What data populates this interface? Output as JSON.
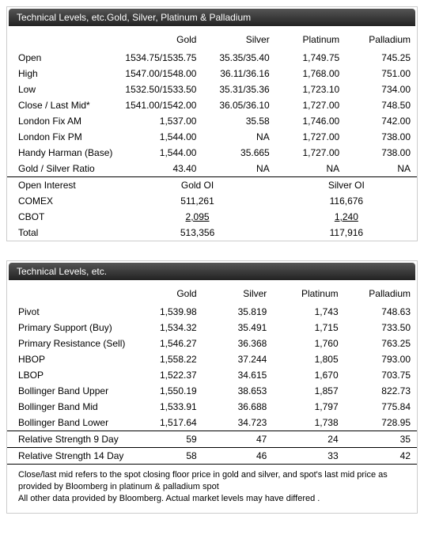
{
  "table1": {
    "title": "Technical Levels, etc.Gold, Silver, Platinum & Palladium",
    "cols": [
      "Gold",
      "Silver",
      "Platinum",
      "Palladium"
    ],
    "rows": [
      {
        "label": "Open",
        "v": [
          "1534.75/1535.75",
          "35.35/35.40",
          "1,749.75",
          "745.25"
        ]
      },
      {
        "label": "High",
        "v": [
          "1547.00/1548.00",
          "36.11/36.16",
          "1,768.00",
          "751.00"
        ]
      },
      {
        "label": "Low",
        "v": [
          "1532.50/1533.50",
          "35.31/35.36",
          "1,723.10",
          "734.00"
        ]
      },
      {
        "label": "Close / Last Mid*",
        "v": [
          "1541.00/1542.00",
          "36.05/36.10",
          "1,727.00",
          "748.50"
        ]
      },
      {
        "label": "London Fix AM",
        "v": [
          "1,537.00",
          "35.58",
          "1,746.00",
          "742.00"
        ]
      },
      {
        "label": "London Fix PM",
        "v": [
          "1,544.00",
          "NA",
          "1,727.00",
          "738.00"
        ]
      },
      {
        "label": "Handy Harman (Base)",
        "v": [
          "1,544.00",
          "35.665",
          "1,727.00",
          "738.00"
        ]
      },
      {
        "label": "Gold / Silver Ratio",
        "v": [
          "43.40",
          "NA",
          "NA",
          "NA"
        ]
      }
    ],
    "oi_header": {
      "label": "Open Interest",
      "gold": "Gold OI",
      "silver": "Silver OI"
    },
    "oi_rows": [
      {
        "label": "COMEX",
        "gold": "511,261",
        "silver": "116,676",
        "ul": false
      },
      {
        "label": "CBOT",
        "gold": "2,095",
        "silver": "1,240",
        "ul": true
      },
      {
        "label": "Total",
        "gold": "513,356",
        "silver": "117,916",
        "ul": false
      }
    ]
  },
  "table2": {
    "title": "Technical Levels, etc.",
    "cols": [
      "Gold",
      "Silver",
      "Platinum",
      "Palladium"
    ],
    "rows": [
      {
        "label": "Pivot",
        "v": [
          "1,539.98",
          "35.819",
          "1,743",
          "748.63"
        ]
      },
      {
        "label": "Primary Support (Buy)",
        "v": [
          "1,534.32",
          "35.491",
          "1,715",
          "733.50"
        ]
      },
      {
        "label": "Primary Resistance (Sell)",
        "v": [
          "1,546.27",
          "36.368",
          "1,760",
          "763.25"
        ]
      },
      {
        "label": "HBOP",
        "v": [
          "1,558.22",
          "37.244",
          "1,805",
          "793.00"
        ]
      },
      {
        "label": "LBOP",
        "v": [
          "1,522.37",
          "34.615",
          "1,670",
          "703.75"
        ]
      },
      {
        "label": "Bollinger Band Upper",
        "v": [
          "1,550.19",
          "38.653",
          "1,857",
          "822.73"
        ]
      },
      {
        "label": "Bollinger Band Mid",
        "v": [
          "1,533.91",
          "36.688",
          "1,797",
          "775.84"
        ]
      },
      {
        "label": "Bollinger Band Lower",
        "v": [
          "1,517.64",
          "34.723",
          "1,738",
          "728.95"
        ]
      }
    ],
    "rs_rows": [
      {
        "label": "Relative Strength 9 Day",
        "v": [
          "59",
          "47",
          "24",
          "35"
        ]
      },
      {
        "label": "Relative Strength 14 Day",
        "v": [
          "58",
          "46",
          "33",
          "42"
        ]
      }
    ],
    "footnote1": "Close/last mid refers to the spot closing floor price in gold and silver, and spot's last mid price as provided by Bloomberg in platinum & palladium spot",
    "footnote2": "All other data provided by Bloomberg. Actual market levels may have differed ."
  }
}
